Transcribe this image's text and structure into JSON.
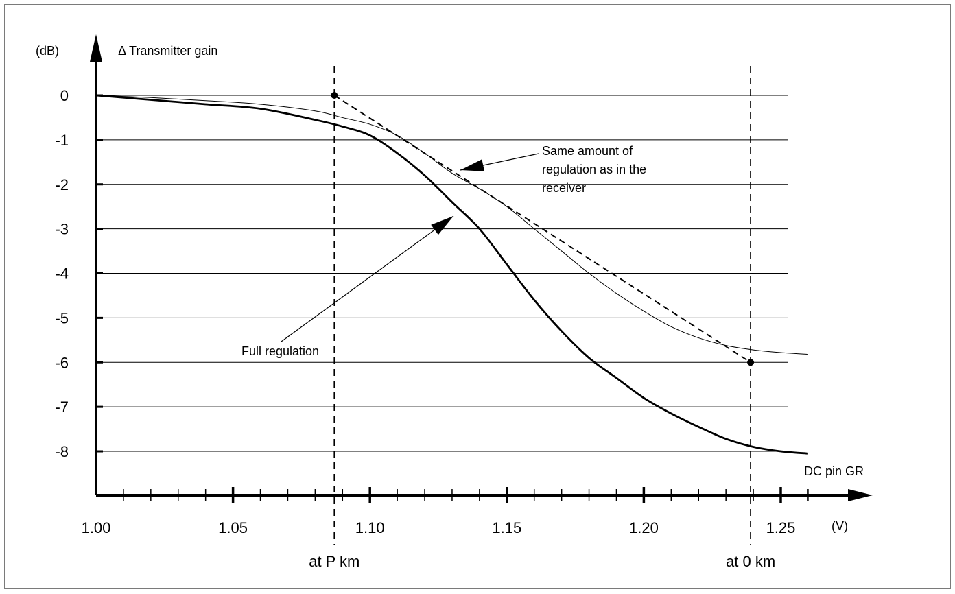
{
  "chart_data": {
    "type": "line",
    "y_unit": "(dB)",
    "y_title": "Δ Transmitter gain",
    "x_unit": "(V)",
    "x_title": "DC pin GR",
    "xlim": [
      1.0,
      1.26
    ],
    "ylim": [
      -9,
      0
    ],
    "x_ticks": [
      1.0,
      1.05,
      1.1,
      1.15,
      1.2,
      1.25
    ],
    "x_tick_labels": [
      "1.00",
      "1.05",
      "1.10",
      "1.15",
      "1.20",
      "1.25"
    ],
    "y_ticks": [
      0,
      -1,
      -2,
      -3,
      -4,
      -5,
      -6,
      -7,
      -8
    ],
    "y_tick_labels": [
      "0",
      "-1",
      "-2",
      "-3",
      "-4",
      "-5",
      "-6",
      "-7",
      "-8"
    ],
    "grid": "horizontal",
    "series": [
      {
        "name": "Full regulation",
        "style": "thick",
        "x": [
          1.0,
          1.02,
          1.04,
          1.06,
          1.08,
          1.09,
          1.1,
          1.11,
          1.12,
          1.13,
          1.14,
          1.15,
          1.16,
          1.17,
          1.18,
          1.19,
          1.2,
          1.21,
          1.22,
          1.23,
          1.24,
          1.25,
          1.26
        ],
        "y": [
          0,
          -0.1,
          -0.2,
          -0.3,
          -0.55,
          -0.7,
          -0.9,
          -1.3,
          -1.8,
          -2.4,
          -3.0,
          -3.8,
          -4.6,
          -5.3,
          -5.9,
          -6.35,
          -6.8,
          -7.15,
          -7.45,
          -7.72,
          -7.9,
          -8.0,
          -8.05
        ]
      },
      {
        "name": "Same amount of regulation as in the receiver",
        "style": "thin",
        "x": [
          1.0,
          1.02,
          1.04,
          1.06,
          1.08,
          1.09,
          1.1,
          1.11,
          1.12,
          1.13,
          1.14,
          1.15,
          1.16,
          1.17,
          1.18,
          1.19,
          1.2,
          1.21,
          1.22,
          1.23,
          1.24,
          1.25,
          1.26
        ],
        "y": [
          0,
          -0.05,
          -0.12,
          -0.2,
          -0.35,
          -0.5,
          -0.65,
          -0.9,
          -1.3,
          -1.75,
          -2.1,
          -2.5,
          -3.0,
          -3.5,
          -4.0,
          -4.45,
          -4.85,
          -5.2,
          -5.45,
          -5.62,
          -5.72,
          -5.78,
          -5.82
        ]
      },
      {
        "name": "",
        "style": "dashed",
        "x": [
          1.087,
          1.239
        ],
        "y": [
          0,
          -6
        ]
      }
    ],
    "markers": [
      {
        "x": 1.087,
        "label": "at P km"
      },
      {
        "x": 1.239,
        "label": "at 0 km"
      }
    ],
    "annotations": [
      {
        "text_lines": [
          "Same amount of",
          "regulation as in the",
          "receiver"
        ],
        "target": "Same amount of regulation as in the receiver"
      },
      {
        "text_lines": [
          "Full regulation"
        ],
        "target": "Full regulation"
      }
    ]
  }
}
